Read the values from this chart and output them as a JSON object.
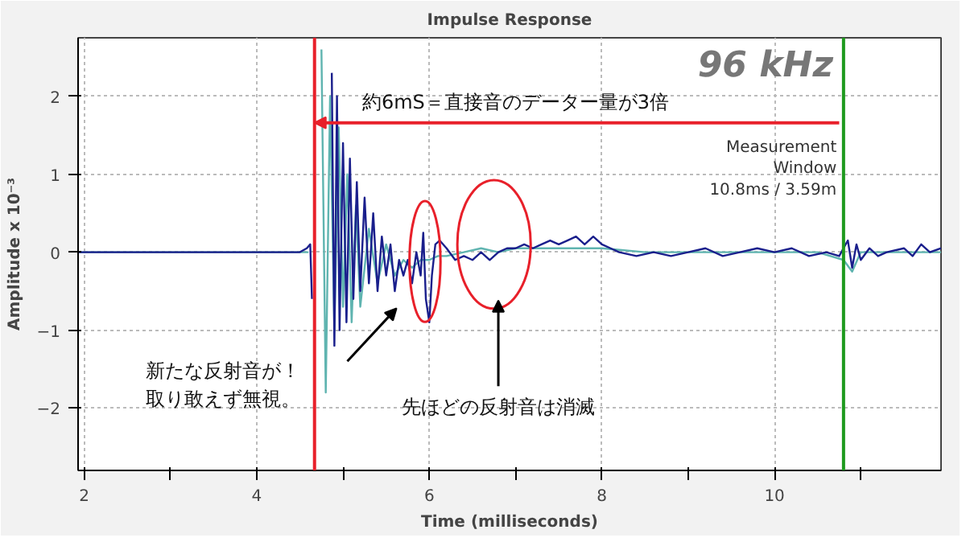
{
  "chart_data": {
    "type": "line",
    "title": "Impulse Response",
    "xlabel": "Time (milliseconds)",
    "ylabel": "Amplitude x 10⁻³",
    "xlim": [
      1.93,
      11.93
    ],
    "ylim": [
      -2.8,
      2.75
    ],
    "xticks": [
      2,
      {
        "value": 3,
        "label": null
      },
      4,
      {
        "value": 5,
        "label": null
      },
      6,
      {
        "value": 7,
        "label": null
      },
      8,
      {
        "value": 9,
        "label": null
      },
      10,
      {
        "value": 11,
        "label": null
      }
    ],
    "yticks": [
      -2,
      -1,
      0,
      1,
      2
    ],
    "grid": true,
    "marker": "none",
    "line_style": "solid",
    "series": [
      {
        "color": "#5fb4b0",
        "x": [
          1.93,
          4.6,
          4.68,
          4.75,
          4.8,
          4.85,
          4.9,
          4.95,
          5.0,
          5.05,
          5.1,
          5.15,
          5.2,
          5.3,
          5.4,
          5.5,
          5.6,
          5.7,
          5.8,
          5.9,
          6.0,
          6.1,
          6.2,
          6.4,
          6.6,
          6.8,
          7.0,
          7.5,
          8.0,
          8.5,
          9.0,
          9.5,
          10.0,
          10.5,
          10.8,
          10.9,
          11.0,
          11.5,
          11.93
        ],
        "values": [
          0,
          0,
          null,
          2.6,
          -1.8,
          2.0,
          -1.0,
          1.6,
          -0.7,
          1.0,
          -0.9,
          0.6,
          -0.7,
          0.3,
          -0.4,
          0.1,
          -0.3,
          -0.1,
          -0.2,
          -0.1,
          -0.1,
          -0.05,
          -0.05,
          0,
          0.05,
          0,
          0.05,
          0.05,
          0.05,
          0,
          0,
          0,
          0,
          0,
          -0.1,
          -0.25,
          0,
          0,
          0
        ]
      },
      {
        "color": "#1a1f8c",
        "x": [
          1.93,
          4.5,
          4.58,
          4.62,
          4.64,
          4.67,
          4.7,
          4.73,
          4.76,
          4.8,
          4.84,
          4.87,
          4.9,
          4.93,
          4.96,
          5.0,
          5.04,
          5.08,
          5.12,
          5.16,
          5.2,
          5.25,
          5.3,
          5.35,
          5.4,
          5.45,
          5.5,
          5.55,
          5.6,
          5.65,
          5.7,
          5.75,
          5.8,
          5.85,
          5.9,
          5.93,
          5.96,
          6.0,
          6.03,
          6.07,
          6.12,
          6.2,
          6.3,
          6.4,
          6.5,
          6.6,
          6.7,
          6.8,
          6.9,
          7.0,
          7.1,
          7.2,
          7.3,
          7.4,
          7.5,
          7.6,
          7.7,
          7.8,
          7.9,
          8.0,
          8.1,
          8.2,
          8.4,
          8.6,
          8.8,
          9.0,
          9.2,
          9.4,
          9.6,
          9.8,
          10.0,
          10.2,
          10.4,
          10.6,
          10.75,
          10.85,
          10.9,
          10.95,
          11.0,
          11.1,
          11.2,
          11.3,
          11.5,
          11.6,
          11.7,
          11.8,
          11.93
        ],
        "values": [
          0,
          0,
          0.05,
          0.1,
          -0.6,
          null,
          null,
          null,
          null,
          null,
          null,
          2.3,
          -1.2,
          2.0,
          -1.0,
          1.4,
          -0.9,
          1.2,
          -0.6,
          0.9,
          -0.5,
          0.7,
          -0.4,
          0.5,
          -0.5,
          0.2,
          -0.3,
          0.1,
          -0.5,
          -0.1,
          -0.3,
          -0.1,
          -0.4,
          0,
          -0.3,
          0.25,
          -0.6,
          -0.9,
          -0.3,
          0.1,
          0.15,
          0.05,
          -0.1,
          -0.05,
          -0.1,
          0,
          -0.1,
          0,
          0.05,
          0.05,
          0.1,
          0.05,
          0.1,
          0.15,
          0.1,
          0.15,
          0.2,
          0.1,
          0.2,
          0.1,
          0.05,
          0,
          -0.05,
          0,
          -0.05,
          0,
          0.05,
          -0.05,
          0,
          0.05,
          0,
          0.05,
          -0.05,
          0,
          -0.05,
          0.15,
          -0.2,
          0.1,
          -0.1,
          0.05,
          -0.05,
          0,
          0.05,
          -0.05,
          0.1,
          0,
          0.05
        ]
      }
    ],
    "ref_lines": [
      {
        "axis": "x",
        "value": 4.67,
        "color": "#e8202a"
      },
      {
        "axis": "x",
        "value": 10.8,
        "color": "#1e9a1e",
        "label": "Measurement\nWindow\n10.8ms / 3.59m"
      }
    ],
    "annotations": [
      "約6mS＝直接音のデーター量が3倍",
      "新たな反射音が！",
      "取り敢えず無視。",
      "先ほどの反射音は消滅",
      "96 kHz"
    ]
  }
}
